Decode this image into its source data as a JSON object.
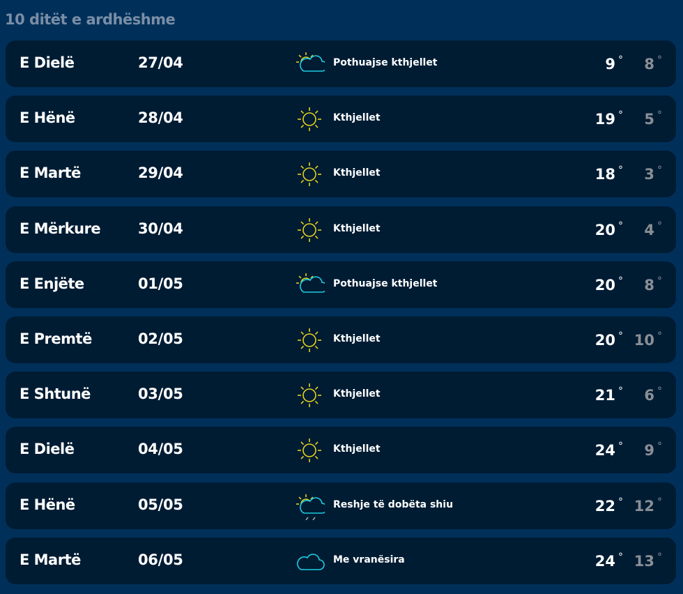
{
  "title": "10 ditët e ardhëshme",
  "colors": {
    "background": "#00305a",
    "row": "#001c33",
    "sun": "#e6d21e",
    "cloud": "#1ecbe0"
  },
  "days": [
    {
      "day": "E Dielë",
      "date": "27/04",
      "icon": "partly-cloudy",
      "desc": "Pothuajse kthjellet",
      "hi": "9",
      "lo": "8"
    },
    {
      "day": "E Hënë",
      "date": "28/04",
      "icon": "sun",
      "desc": "Kthjellet",
      "hi": "19",
      "lo": "5"
    },
    {
      "day": "E Martë",
      "date": "29/04",
      "icon": "sun",
      "desc": "Kthjellet",
      "hi": "18",
      "lo": "3"
    },
    {
      "day": "E Mërkure",
      "date": "30/04",
      "icon": "sun",
      "desc": "Kthjellet",
      "hi": "20",
      "lo": "4"
    },
    {
      "day": "E Enjëte",
      "date": "01/05",
      "icon": "partly-cloudy",
      "desc": "Pothuajse kthjellet",
      "hi": "20",
      "lo": "8"
    },
    {
      "day": "E Premtë",
      "date": "02/05",
      "icon": "sun",
      "desc": "Kthjellet",
      "hi": "20",
      "lo": "10"
    },
    {
      "day": "E Shtunë",
      "date": "03/05",
      "icon": "sun",
      "desc": "Kthjellet",
      "hi": "21",
      "lo": "6"
    },
    {
      "day": "E Dielë",
      "date": "04/05",
      "icon": "sun",
      "desc": "Kthjellet",
      "hi": "24",
      "lo": "9"
    },
    {
      "day": "E Hënë",
      "date": "05/05",
      "icon": "light-rain",
      "desc": "Reshje të dobëta shiu",
      "hi": "22",
      "lo": "12"
    },
    {
      "day": "E Martë",
      "date": "06/05",
      "icon": "cloud",
      "desc": "Me vranësira",
      "hi": "24",
      "lo": "13"
    }
  ]
}
